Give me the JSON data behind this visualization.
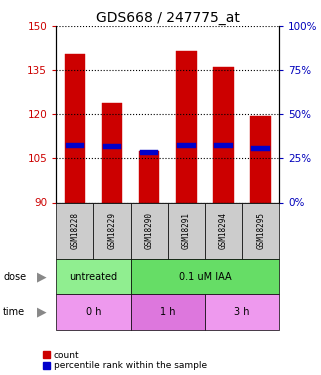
{
  "title": "GDS668 / 247775_at",
  "samples": [
    "GSM18228",
    "GSM18229",
    "GSM18290",
    "GSM18291",
    "GSM18294",
    "GSM18295"
  ],
  "bar_tops": [
    140.5,
    124.0,
    107.5,
    141.5,
    136.0,
    119.5
  ],
  "bar_bottoms": [
    90,
    90,
    90,
    90,
    90,
    90
  ],
  "blue_vals": [
    109.5,
    109.0,
    107.0,
    109.5,
    109.5,
    108.5
  ],
  "blue_heights": [
    1.8,
    1.8,
    1.8,
    1.8,
    1.8,
    1.8
  ],
  "ylim_left": [
    90,
    150
  ],
  "ylim_right": [
    0,
    100
  ],
  "yticks_left": [
    90,
    105,
    120,
    135,
    150
  ],
  "yticks_right": [
    0,
    25,
    50,
    75,
    100
  ],
  "bar_color": "#cc0000",
  "blue_color": "#0000cc",
  "dose_groups": [
    {
      "label": "untreated",
      "start": 0,
      "end": 2,
      "color": "#90ee90"
    },
    {
      "label": "0.1 uM IAA",
      "start": 2,
      "end": 6,
      "color": "#66dd66"
    }
  ],
  "time_groups": [
    {
      "label": "0 h",
      "start": 0,
      "end": 2,
      "color": "#ee99ee"
    },
    {
      "label": "1 h",
      "start": 2,
      "end": 4,
      "color": "#dd77dd"
    },
    {
      "label": "3 h",
      "start": 4,
      "end": 6,
      "color": "#ee99ee"
    }
  ],
  "tick_color_left": "#cc0000",
  "tick_color_right": "#0000bb",
  "bg_color": "#ffffff",
  "bar_width": 0.55,
  "label_fontsize": 7.5,
  "title_fontsize": 10,
  "sample_fontsize": 5.5,
  "annotation_fontsize": 7.0,
  "legend_fontsize": 6.5
}
